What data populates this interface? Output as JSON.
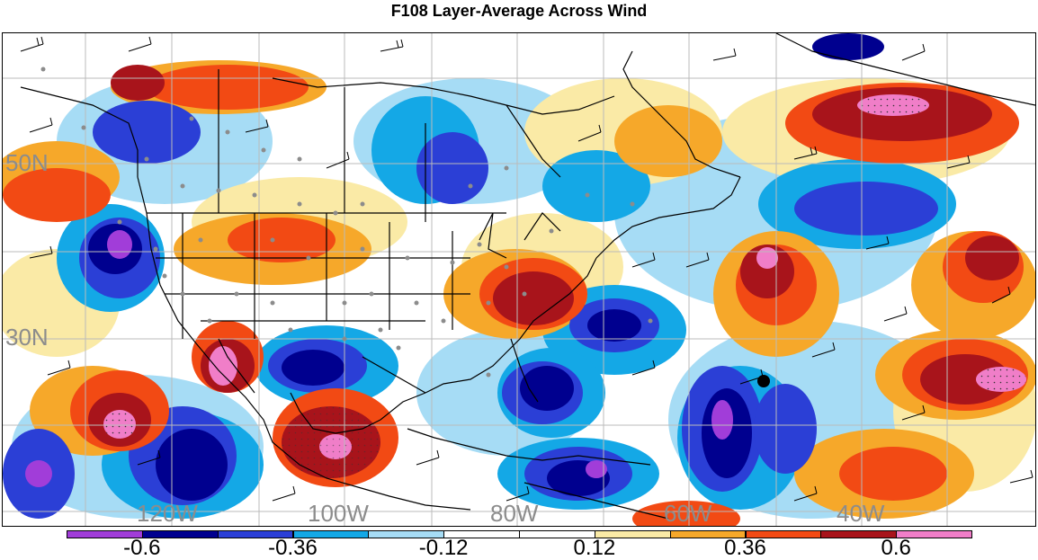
{
  "title": "F108 Layer-Average Across Wind",
  "lat_labels": [
    "50N",
    "30N"
  ],
  "lon_labels": [
    "120W",
    "100W",
    "80W",
    "60W",
    "40W"
  ],
  "colorbar": {
    "colors": [
      "#a13dd9",
      "#00008f",
      "#2b3fd6",
      "#14a8e6",
      "#a6dcf5",
      "#ffffff",
      "#ffffff",
      "#faeaa6",
      "#f6a82a",
      "#f24a14",
      "#a8141b",
      "#f07ec8"
    ],
    "tick_labels": [
      "-0.6",
      "-0.36",
      "-0.12",
      "0.12",
      "0.36",
      "0.6"
    ]
  }
}
